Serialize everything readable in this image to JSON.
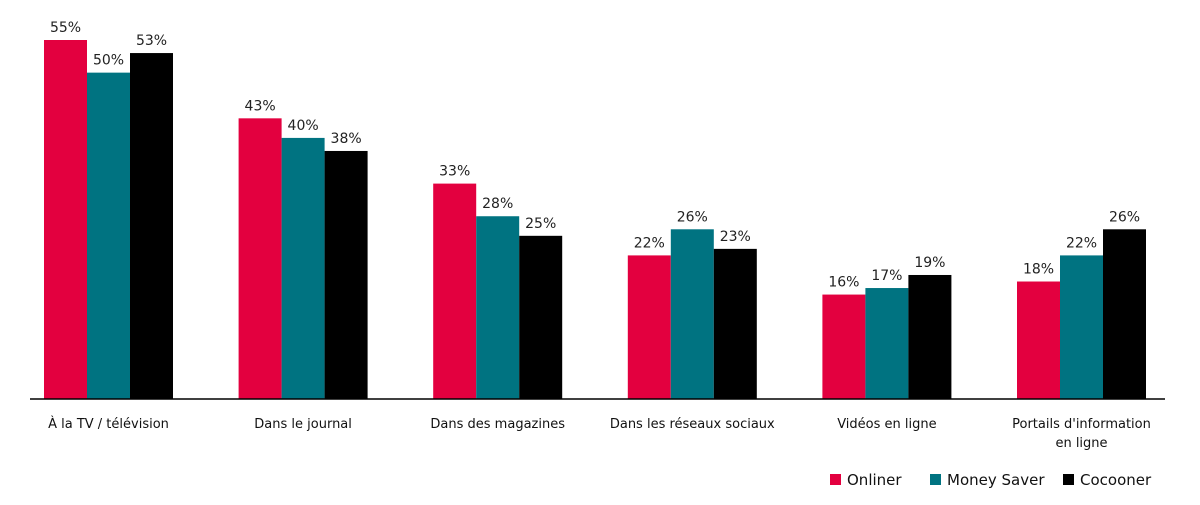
{
  "chart_data": {
    "type": "bar",
    "title": "",
    "xlabel": "",
    "ylabel": "",
    "ylim": [
      0,
      55
    ],
    "grid": false,
    "legend_position": "bottom-right",
    "categories": [
      [
        "À la TV / télévision"
      ],
      [
        "Dans le journal"
      ],
      [
        "Dans des magazines"
      ],
      [
        "Dans les réseaux sociaux"
      ],
      [
        "Vidéos en ligne"
      ],
      [
        "Portails d'information",
        "en ligne"
      ]
    ],
    "series": [
      {
        "name": "Onliner",
        "color": "#e3003f",
        "values": [
          55,
          43,
          33,
          22,
          16,
          18
        ]
      },
      {
        "name": "Money Saver",
        "color": "#007381",
        "values": [
          50,
          40,
          28,
          26,
          17,
          22
        ]
      },
      {
        "name": "Cocooner",
        "color": "#000000",
        "values": [
          53,
          38,
          25,
          23,
          19,
          26
        ]
      }
    ],
    "value_suffix": "%"
  }
}
